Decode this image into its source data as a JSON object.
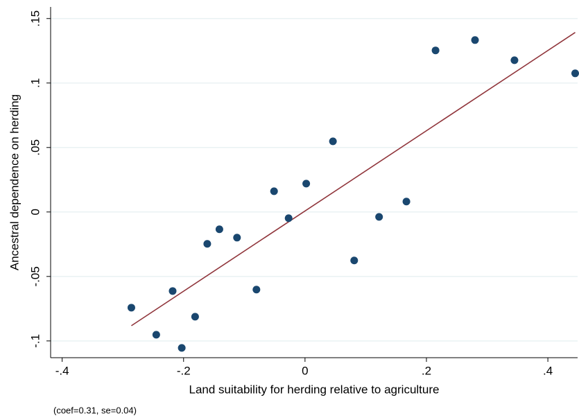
{
  "chart_data": {
    "type": "scatter",
    "x_label": "Land suitability for herding relative to agriculture",
    "y_label": "Ancestral dependence on herding",
    "note": "(coef=0.31, se=0.04)",
    "x": [
      -0.286,
      -0.245,
      -0.218,
      -0.203,
      -0.181,
      -0.161,
      -0.141,
      -0.112,
      -0.08,
      -0.051,
      -0.027,
      0.002,
      0.046,
      0.081,
      0.122,
      0.167,
      0.215,
      0.28,
      0.345,
      0.445
    ],
    "y": [
      -0.0742,
      -0.0952,
      -0.0613,
      -0.1054,
      -0.0812,
      -0.0247,
      -0.0134,
      -0.0199,
      -0.0602,
      0.0161,
      -0.0048,
      0.022,
      0.0548,
      -0.0376,
      -0.0038,
      0.0081,
      0.1253,
      0.1333,
      0.1177,
      0.1075
    ],
    "color": "#1a476f",
    "fit": {
      "x": [
        -0.286,
        0.445
      ],
      "y": [
        -0.0882,
        0.1392
      ],
      "color": "#90353b"
    },
    "xlim": [
      -0.419,
      0.449
    ],
    "ylim": [
      -0.113,
      0.159
    ],
    "xticks": [
      {
        "value": -0.4,
        "label": "-.4"
      },
      {
        "value": -0.2,
        "label": "-.2"
      },
      0,
      {
        "value": 0.2,
        "label": ".2"
      },
      {
        "value": 0.4,
        "label": ".4"
      }
    ],
    "yticks": [
      {
        "value": -0.1,
        "label": "-.1"
      },
      {
        "value": -0.05,
        "label": "-.05"
      },
      0,
      {
        "value": 0.05,
        "label": ".05"
      },
      {
        "value": 0.1,
        "label": ".1"
      },
      {
        "value": 0.15,
        "label": ".15"
      }
    ],
    "grid": true
  }
}
